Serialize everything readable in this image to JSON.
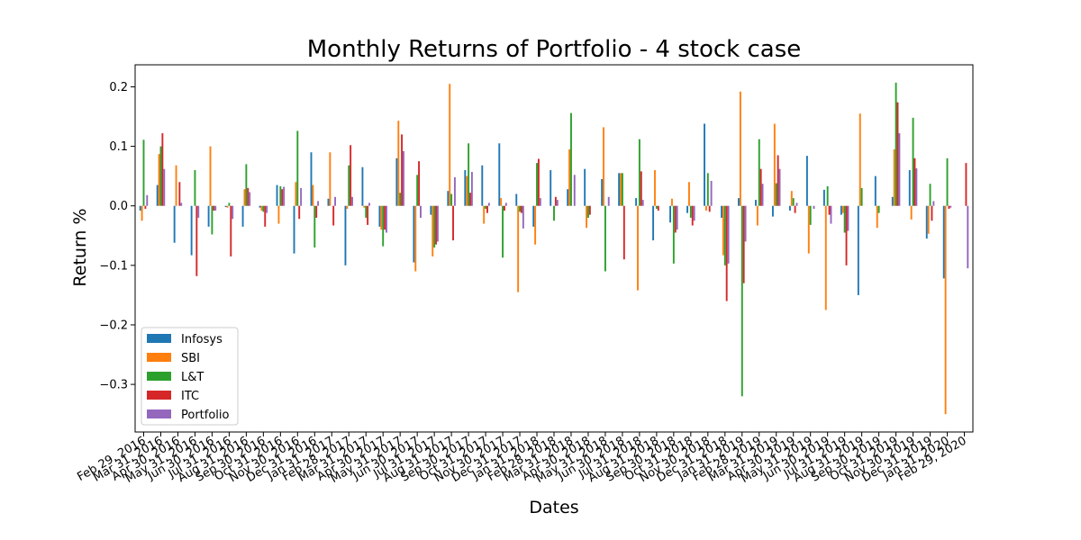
{
  "chart_data": {
    "type": "bar",
    "title": "Monthly Returns of Portfolio - 4 stock case",
    "xlabel": "Dates",
    "ylabel": "Return %",
    "ylim": [
      -0.38,
      0.237
    ],
    "yticks": [
      -0.3,
      -0.2,
      -0.1,
      0.0,
      0.1,
      0.2
    ],
    "ytick_labels": [
      "−0.3",
      "−0.2",
      "−0.1",
      "0.0",
      "0.1",
      "0.2"
    ],
    "legend_position": "lower-left",
    "categories": [
      "Feb 29, 2016",
      "Mar 31, 2016",
      "Apr 30, 2016",
      "May 31, 2016",
      "Jun 30, 2016",
      "Jul 31, 2016",
      "Aug 31, 2016",
      "Sep 30, 2016",
      "Oct 31, 2016",
      "Nov 30, 2016",
      "Dec 31, 2016",
      "Jan 31, 2017",
      "Feb 28, 2017",
      "Mar 31, 2017",
      "Apr 30, 2017",
      "May 31, 2017",
      "Jun 30, 2017",
      "Jul 31, 2017",
      "Aug 31, 2017",
      "Sep 30, 2017",
      "Oct 31, 2017",
      "Nov 30, 2017",
      "Dec 31, 2017",
      "Jan 31, 2018",
      "Feb 28, 2018",
      "Mar 31, 2018",
      "Apr 30, 2018",
      "May 31, 2018",
      "Jun 30, 2018",
      "Jul 31, 2018",
      "Aug 31, 2018",
      "Sep 30, 2018",
      "Oct 31, 2018",
      "Nov 30, 2018",
      "Dec 31, 2018",
      "Jan 31, 2019",
      "Feb 28, 2019",
      "Mar 31, 2019",
      "Apr 30, 2019",
      "May 31, 2019",
      "Jun 30, 2019",
      "Jul 31, 2019",
      "Aug 31, 2019",
      "Sep 30, 2019",
      "Oct 31, 2019",
      "Nov 30, 2019",
      "Dec 31, 2019",
      "Jan 31, 2020",
      "Feb 29, 2020"
    ],
    "series": [
      {
        "name": "Infosys",
        "color": "#1f77b4",
        "values": [
          -0.008,
          0.035,
          -0.062,
          -0.083,
          -0.035,
          -0.002,
          -0.035,
          -0.003,
          0.035,
          -0.08,
          0.09,
          0.012,
          -0.1,
          0.065,
          -0.035,
          0.08,
          -0.095,
          -0.015,
          0.025,
          0.06,
          0.068,
          0.105,
          0.02,
          -0.035,
          0.06,
          0.028,
          0.062,
          0.045,
          0.055,
          0.013,
          -0.058,
          -0.028,
          -0.012,
          0.138,
          -0.02,
          0.013,
          0.01,
          -0.018,
          -0.008,
          0.084,
          0.027,
          -0.015,
          -0.15,
          0.05,
          0.015,
          0.06,
          -0.055,
          -0.122,
          0.0
        ]
      },
      {
        "name": "SBI",
        "color": "#ff7f0e",
        "values": [
          -0.025,
          0.087,
          0.068,
          0.0,
          0.1,
          -0.003,
          0.028,
          -0.008,
          -0.03,
          0.04,
          0.035,
          0.09,
          -0.005,
          -0.003,
          -0.04,
          0.143,
          -0.11,
          -0.085,
          0.205,
          0.05,
          -0.03,
          0.013,
          -0.145,
          -0.065,
          0.0,
          0.095,
          -0.037,
          0.132,
          0.055,
          -0.142,
          0.06,
          0.012,
          0.04,
          -0.008,
          -0.083,
          0.192,
          -0.033,
          0.138,
          0.025,
          -0.08,
          -0.175,
          -0.012,
          0.155,
          -0.037,
          0.095,
          -0.023,
          -0.047,
          -0.35,
          0.0
        ]
      },
      {
        "name": "L&T",
        "color": "#2ca02c",
        "values": [
          0.111,
          0.1,
          0.0,
          0.06,
          -0.048,
          0.005,
          0.07,
          -0.01,
          0.033,
          0.126,
          -0.07,
          0.0,
          0.068,
          -0.02,
          -0.068,
          0.022,
          0.052,
          -0.07,
          0.02,
          0.105,
          -0.005,
          -0.087,
          -0.01,
          0.072,
          -0.025,
          0.156,
          -0.02,
          -0.11,
          0.055,
          0.112,
          -0.005,
          -0.097,
          -0.02,
          0.055,
          -0.1,
          -0.32,
          0.112,
          0.038,
          0.013,
          -0.032,
          0.033,
          -0.045,
          0.03,
          -0.012,
          0.207,
          0.148,
          0.037,
          0.08,
          0.0
        ]
      },
      {
        "name": "ITC",
        "color": "#d62728",
        "values": [
          -0.005,
          0.122,
          0.04,
          -0.118,
          -0.008,
          -0.085,
          0.03,
          -0.035,
          0.028,
          -0.022,
          -0.02,
          -0.033,
          0.102,
          -0.032,
          -0.04,
          0.12,
          0.075,
          -0.065,
          -0.058,
          0.022,
          -0.012,
          -0.008,
          -0.012,
          0.079,
          0.015,
          0.0,
          -0.015,
          0.0,
          -0.09,
          0.058,
          -0.008,
          -0.045,
          -0.033,
          -0.01,
          -0.16,
          -0.13,
          0.062,
          0.085,
          -0.012,
          0.0,
          -0.015,
          -0.1,
          0.0,
          0.0,
          0.174,
          0.08,
          -0.025,
          -0.005,
          0.072
        ]
      },
      {
        "name": "Portfolio",
        "color": "#9467bd",
        "values": [
          0.018,
          0.062,
          0.005,
          -0.02,
          -0.008,
          -0.022,
          0.023,
          -0.012,
          0.032,
          0.03,
          0.008,
          0.015,
          0.015,
          0.005,
          -0.045,
          0.092,
          -0.02,
          -0.06,
          0.048,
          0.057,
          0.005,
          0.005,
          -0.038,
          0.013,
          0.01,
          0.052,
          0.0,
          0.015,
          0.0,
          0.01,
          0.0,
          -0.04,
          -0.025,
          0.042,
          -0.097,
          -0.06,
          0.037,
          0.062,
          0.005,
          -0.005,
          -0.03,
          -0.042,
          0.0,
          0.0,
          0.122,
          0.063,
          0.008,
          -0.003,
          -0.105
        ]
      }
    ]
  }
}
